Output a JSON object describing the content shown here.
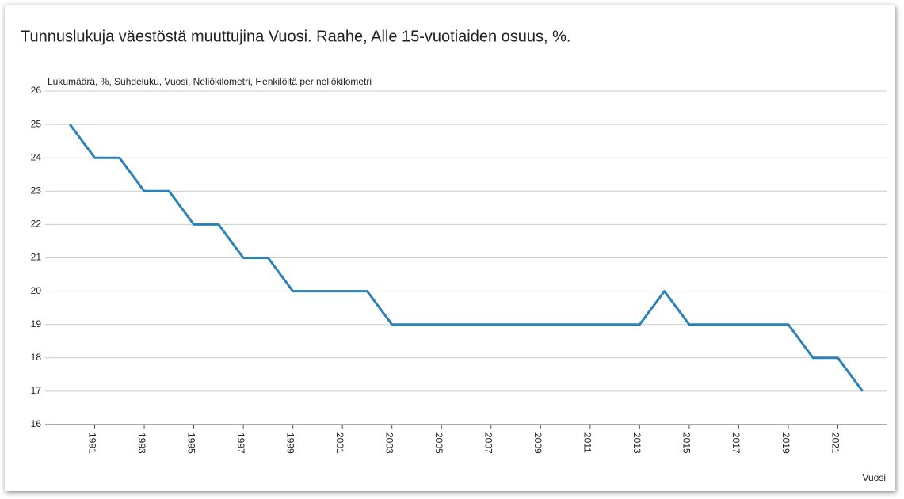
{
  "chart_data": {
    "type": "line",
    "title": "Tunnuslukuja väestöstä muuttujina Vuosi. Raahe, Alle 15-vuotiaiden osuus, %.",
    "y_label": "Lukumäärä, %, Suhdeluku, Vuosi, Neliökilometri, Henkilöitä per neliökilometri",
    "x_label": "Vuosi",
    "x": [
      1990,
      1991,
      1992,
      1993,
      1994,
      1995,
      1996,
      1997,
      1998,
      1999,
      2000,
      2001,
      2002,
      2003,
      2004,
      2005,
      2006,
      2007,
      2008,
      2009,
      2010,
      2011,
      2012,
      2013,
      2014,
      2015,
      2016,
      2017,
      2018,
      2019,
      2020,
      2021,
      2022
    ],
    "series": [
      {
        "color": "#2a82b8",
        "values": [
          25,
          24,
          24,
          23,
          23,
          22,
          22,
          21,
          21,
          20,
          20,
          20,
          20,
          19,
          19,
          19,
          19,
          19,
          19,
          19,
          19,
          19,
          19,
          19,
          20,
          19,
          19,
          19,
          19,
          19,
          18,
          18,
          17
        ]
      }
    ],
    "xlim": [
      1989,
      2023
    ],
    "xticks": [
      1991,
      1993,
      1995,
      1997,
      1999,
      2001,
      2003,
      2005,
      2007,
      2009,
      2011,
      2013,
      2015,
      2017,
      2019,
      2021
    ],
    "ylim": [
      16,
      26
    ],
    "yticks": [
      16,
      17,
      18,
      19,
      20,
      21,
      22,
      23,
      24,
      25,
      26
    ],
    "grid": true
  }
}
